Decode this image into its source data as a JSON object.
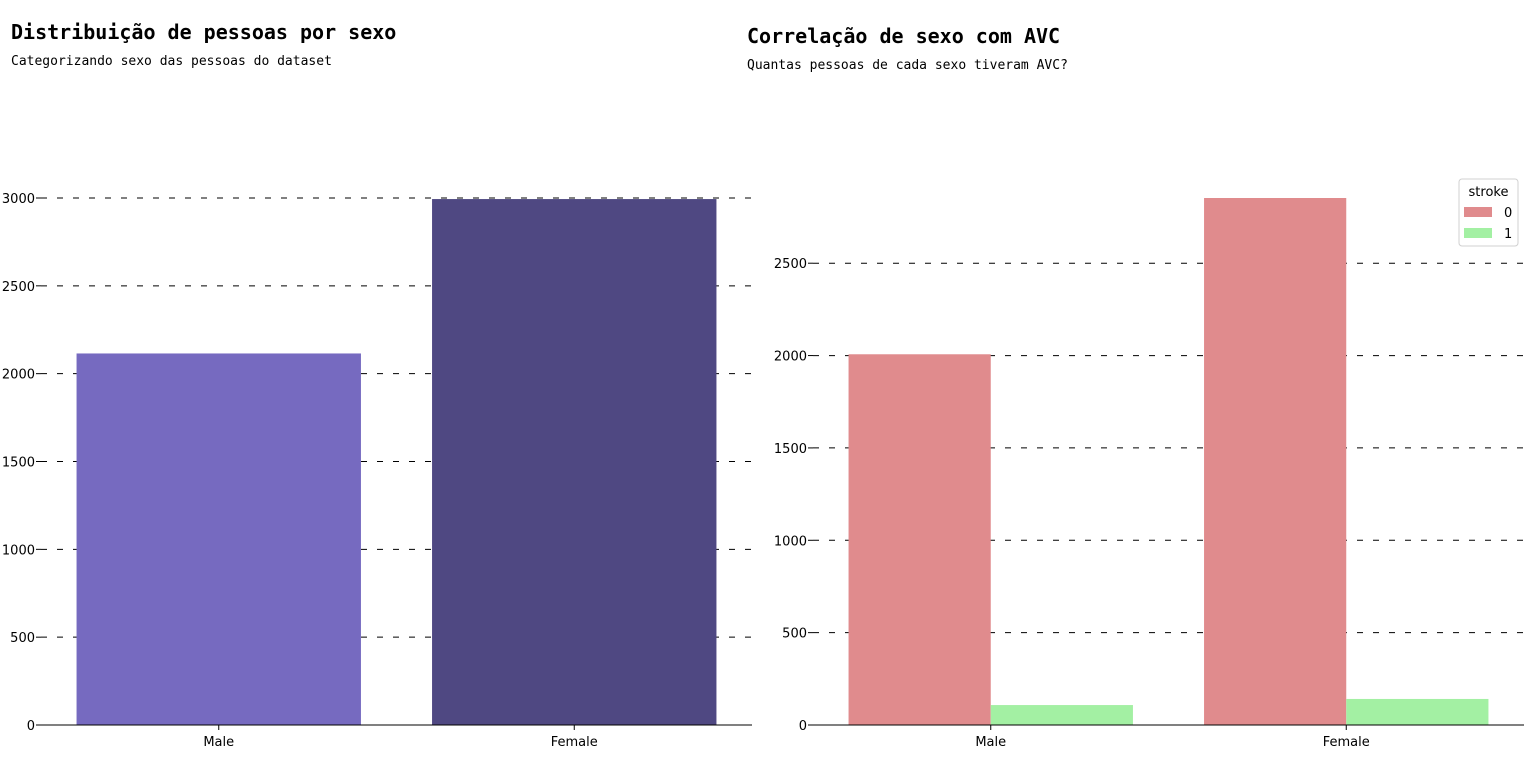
{
  "chart_data": [
    {
      "type": "bar",
      "title": "Distribuição de pessoas por sexo",
      "subtitle": "Categorizando sexo das pessoas do dataset",
      "categories": [
        "Male",
        "Female"
      ],
      "values": [
        2115,
        2994
      ],
      "colors": [
        "#766ac0",
        "#4f4882"
      ],
      "ylim": [
        0,
        3000
      ],
      "yticks": [
        0,
        500,
        1000,
        1500,
        2000,
        2500,
        3000
      ],
      "grid": "dashed horizontal",
      "xlabel": "",
      "ylabel": ""
    },
    {
      "type": "bar",
      "title": "Correlação de sexo com AVC",
      "subtitle": "Quantas pessoas de cada sexo tiveram AVC?",
      "categories": [
        "Male",
        "Female"
      ],
      "series": [
        {
          "name": "0",
          "values": [
            2007,
            2853
          ],
          "color": "#e08b8d"
        },
        {
          "name": "1",
          "values": [
            108,
            141
          ],
          "color": "#a3f0a3"
        }
      ],
      "legend_title": "stroke",
      "legend_position": "top-right",
      "ylim": [
        0,
        2853
      ],
      "yticks": [
        0,
        500,
        1000,
        1500,
        2000,
        2500
      ],
      "grid": "dashed horizontal",
      "xlabel": "",
      "ylabel": ""
    }
  ]
}
